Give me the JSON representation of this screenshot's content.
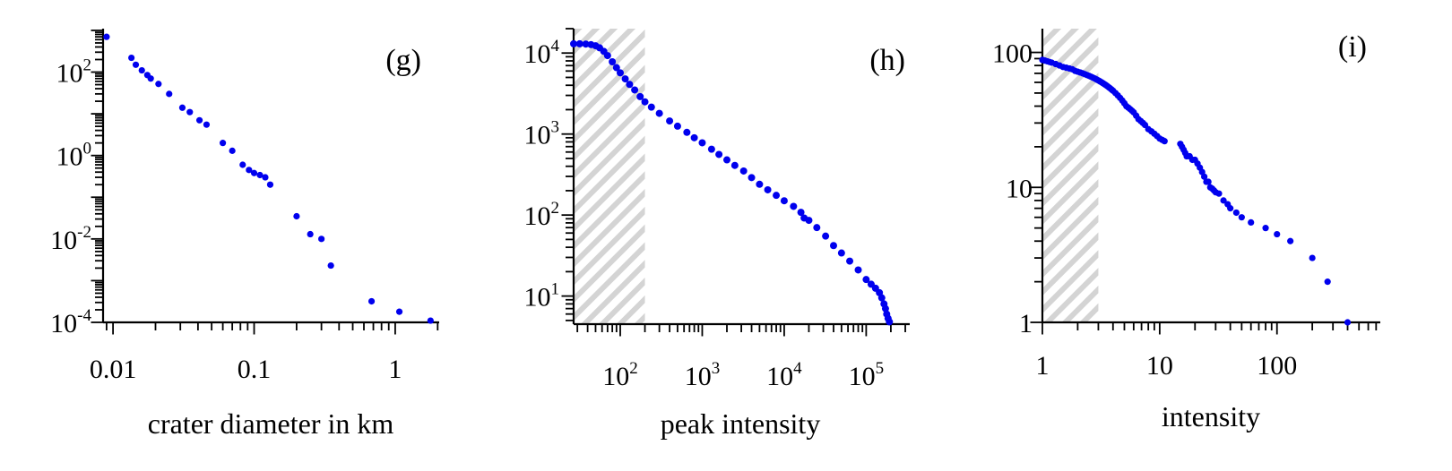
{
  "chart_data": [
    {
      "type": "scatter",
      "panel_label": "(g)",
      "title": "",
      "xlabel": "crater diameter in km",
      "ylabel": "",
      "x_scale": "log",
      "y_scale": "log",
      "xlim": [
        0.0085,
        2.05
      ],
      "ylim": [
        0.0001,
        1100
      ],
      "x_ticks": [
        {
          "base": "0.01",
          "exp": "",
          "v": 0.01
        },
        {
          "base": "0.1",
          "exp": "",
          "v": 0.1
        },
        {
          "base": "1",
          "exp": "",
          "v": 1
        }
      ],
      "y_ticks": [
        {
          "base": "10",
          "exp": "2",
          "v": 100
        },
        {
          "base": "10",
          "exp": "0",
          "v": 1
        },
        {
          "base": "10",
          "exp": "-2",
          "v": 0.01
        },
        {
          "base": "10",
          "exp": "-4",
          "v": 0.0001
        }
      ],
      "shaded_region": null,
      "color": "#0000ee",
      "series": [
        {
          "x": [
            0.009,
            0.0135,
            0.0145,
            0.016,
            0.0175,
            0.0185,
            0.021,
            0.025,
            0.031,
            0.035,
            0.041,
            0.046,
            0.06,
            0.07,
            0.083,
            0.092,
            0.1,
            0.11,
            0.12,
            0.13,
            0.2,
            0.25,
            0.3,
            0.35,
            0.68,
            1.07,
            1.78
          ],
          "y": [
            700,
            220,
            150,
            110,
            85,
            70,
            52,
            30,
            14,
            11,
            7,
            5.5,
            2,
            1.3,
            0.6,
            0.45,
            0.38,
            0.34,
            0.3,
            0.2,
            0.035,
            0.013,
            0.01,
            0.0023,
            0.00032,
            0.00018,
            0.00011
          ]
        }
      ]
    },
    {
      "type": "scatter",
      "panel_label": "(h)",
      "title": "",
      "xlabel": "peak intensity",
      "ylabel": "",
      "x_scale": "log",
      "y_scale": "log",
      "xlim": [
        27,
        340000
      ],
      "ylim": [
        4.5,
        20000
      ],
      "x_ticks": [
        {
          "base": "10",
          "exp": "2",
          "v": 100
        },
        {
          "base": "10",
          "exp": "3",
          "v": 1000
        },
        {
          "base": "10",
          "exp": "4",
          "v": 10000
        },
        {
          "base": "10",
          "exp": "5",
          "v": 100000
        }
      ],
      "y_ticks": [
        {
          "base": "10",
          "exp": "4",
          "v": 10000
        },
        {
          "base": "10",
          "exp": "3",
          "v": 1000
        },
        {
          "base": "10",
          "exp": "2",
          "v": 100
        },
        {
          "base": "10",
          "exp": "1",
          "v": 10
        }
      ],
      "shaded_region": [
        27,
        200
      ],
      "color": "#0000ee",
      "series": [
        {
          "x": [
            27,
            32,
            38,
            44,
            50,
            56,
            63,
            70,
            80,
            90,
            100,
            115,
            130,
            150,
            175,
            200,
            240,
            300,
            400,
            500,
            650,
            800,
            1000,
            1300,
            1600,
            2000,
            2500,
            3200,
            4000,
            5000,
            6300,
            8000,
            10000,
            13000,
            16000,
            17500,
            20000,
            25000,
            32000,
            40000,
            50000,
            63000,
            80000,
            100000,
            115000,
            130000,
            145000,
            155000,
            165000,
            172000,
            178000,
            185000,
            192000
          ],
          "y": [
            13000,
            13000,
            12900,
            12700,
            12300,
            11600,
            10500,
            9300,
            7800,
            6600,
            5700,
            4800,
            4100,
            3500,
            2900,
            2500,
            2150,
            1800,
            1450,
            1250,
            1050,
            900,
            780,
            650,
            560,
            480,
            410,
            350,
            290,
            240,
            205,
            175,
            150,
            128,
            108,
            92,
            86,
            70,
            55,
            42,
            34,
            27,
            21,
            16,
            14,
            12.5,
            11,
            9.5,
            8,
            7,
            6,
            5.3,
            4.8
          ]
        }
      ]
    },
    {
      "type": "scatter",
      "panel_label": "(i)",
      "title": "",
      "xlabel": "intensity",
      "ylabel": "",
      "x_scale": "log",
      "y_scale": "log",
      "xlim": [
        1,
        760
      ],
      "ylim": [
        1,
        150
      ],
      "x_ticks": [
        {
          "base": "1",
          "exp": "",
          "v": 1
        },
        {
          "base": "10",
          "exp": "",
          "v": 10
        },
        {
          "base": "100",
          "exp": "",
          "v": 100
        }
      ],
      "y_ticks": [
        {
          "base": "100",
          "exp": "",
          "v": 100
        },
        {
          "base": "10",
          "exp": "",
          "v": 10
        },
        {
          "base": "1",
          "exp": "",
          "v": 1
        }
      ],
      "shaded_region": [
        1,
        3
      ],
      "color": "#0000ee",
      "series": [
        {
          "x": [
            1.0,
            1.05,
            1.1,
            1.15,
            1.2,
            1.3,
            1.4,
            1.5,
            1.6,
            1.7,
            1.8,
            1.9,
            2.0,
            2.1,
            2.2,
            2.3,
            2.4,
            2.5,
            2.6,
            2.7,
            2.8,
            2.9,
            3.0,
            3.1,
            3.2,
            3.3,
            3.4,
            3.5,
            3.6,
            3.7,
            3.8,
            3.9,
            4.0,
            4.2,
            4.4,
            4.6,
            4.8,
            5.0,
            5.2,
            5.4,
            5.6,
            5.8,
            6.0,
            6.3,
            6.6,
            6.9,
            7.2,
            7.5,
            8.0,
            8.5,
            9.0,
            9.5,
            10.0,
            10.5,
            11.0,
            15.0,
            15.5,
            16.0,
            16.5,
            17.0,
            18.0,
            19.0,
            20.0,
            21.0,
            22.0,
            23.0,
            24.0,
            25.0,
            26.0,
            27.0,
            28.0,
            29.0,
            30.0,
            32.0,
            35.0,
            38.0,
            40.0,
            45.0,
            50.0,
            60.0,
            80.0,
            100.0,
            130.0,
            200.0,
            270.0,
            400.0
          ],
          "y": [
            88,
            87,
            86,
            85,
            84,
            82,
            80,
            78,
            77,
            76,
            75,
            73,
            72,
            71,
            70,
            69,
            68,
            67,
            66,
            65,
            64,
            63,
            62,
            61,
            60,
            59,
            58,
            57,
            56,
            55,
            54,
            53,
            52,
            50,
            48,
            46,
            44,
            42,
            40,
            39,
            38,
            37,
            36,
            34,
            32,
            31,
            30,
            29,
            27,
            26,
            25,
            24,
            23,
            22.5,
            22,
            21,
            20,
            19,
            18,
            17,
            17,
            16,
            16,
            15,
            14,
            13,
            12,
            11,
            11,
            10,
            9.8,
            9.5,
            9.2,
            9,
            8,
            7.5,
            7,
            6.5,
            6,
            5.5,
            5,
            4.5,
            4,
            3,
            2,
            1
          ]
        }
      ]
    }
  ]
}
